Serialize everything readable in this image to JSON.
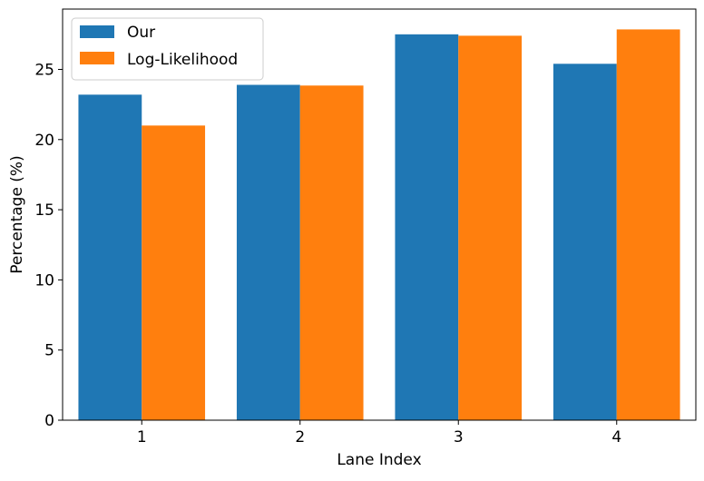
{
  "chart_data": {
    "type": "bar",
    "categories": [
      "1",
      "2",
      "3",
      "4"
    ],
    "series": [
      {
        "name": "Our",
        "values": [
          23.2,
          23.9,
          27.5,
          25.4
        ],
        "color": "#1f77b4"
      },
      {
        "name": "Log-Likelihood",
        "values": [
          21.0,
          23.85,
          27.4,
          27.85
        ],
        "color": "#ff7f0e"
      }
    ],
    "xlabel": "Lane Index",
    "ylabel": "Percentage (%)",
    "ylim": [
      0,
      29.3
    ],
    "yticks": [
      0,
      5,
      10,
      15,
      20,
      25
    ],
    "grid": false,
    "legend_position": "top-left"
  }
}
